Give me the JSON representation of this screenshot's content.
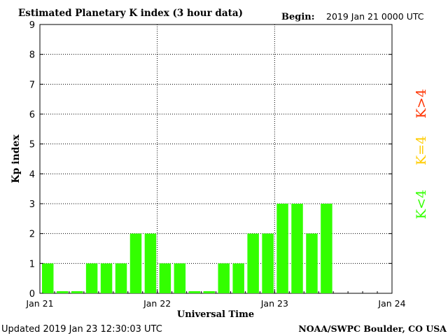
{
  "header": {
    "title": "Estimated Planetary K index (3 hour data)",
    "begin_label": "Begin:",
    "begin_value": "2019 Jan 21 0000 UTC"
  },
  "footer": {
    "updated": "Updated 2019 Jan 23 12:30:03 UTC",
    "source": "NOAA/SWPC Boulder, CO USA"
  },
  "legend": {
    "items": [
      {
        "label": "K>4",
        "color": "#ff3300"
      },
      {
        "label": "K=4",
        "color": "#ffcc00"
      },
      {
        "label": "K<4",
        "color": "#33ff00"
      }
    ]
  },
  "chart_data": {
    "type": "bar",
    "title": "Estimated Planetary K index (3 hour data)",
    "xlabel": "Universal Time",
    "ylabel": "Kp index",
    "ylim": [
      0,
      9
    ],
    "yticks": [
      0,
      1,
      2,
      3,
      4,
      5,
      6,
      7,
      8,
      9
    ],
    "xlim_days": [
      0,
      3
    ],
    "xticks": [
      {
        "day": 0,
        "label": "Jan 21"
      },
      {
        "day": 1,
        "label": "Jan 22"
      },
      {
        "day": 2,
        "label": "Jan 23"
      },
      {
        "day": 3,
        "label": "Jan 24"
      }
    ],
    "bar_interval_hours": 3,
    "bar_color": "#33ff00",
    "grid": "dotted",
    "values": [
      1,
      0,
      0,
      1,
      1,
      1,
      2,
      2,
      1,
      1,
      0,
      0,
      1,
      1,
      2,
      2,
      3,
      3,
      2,
      3
    ]
  }
}
